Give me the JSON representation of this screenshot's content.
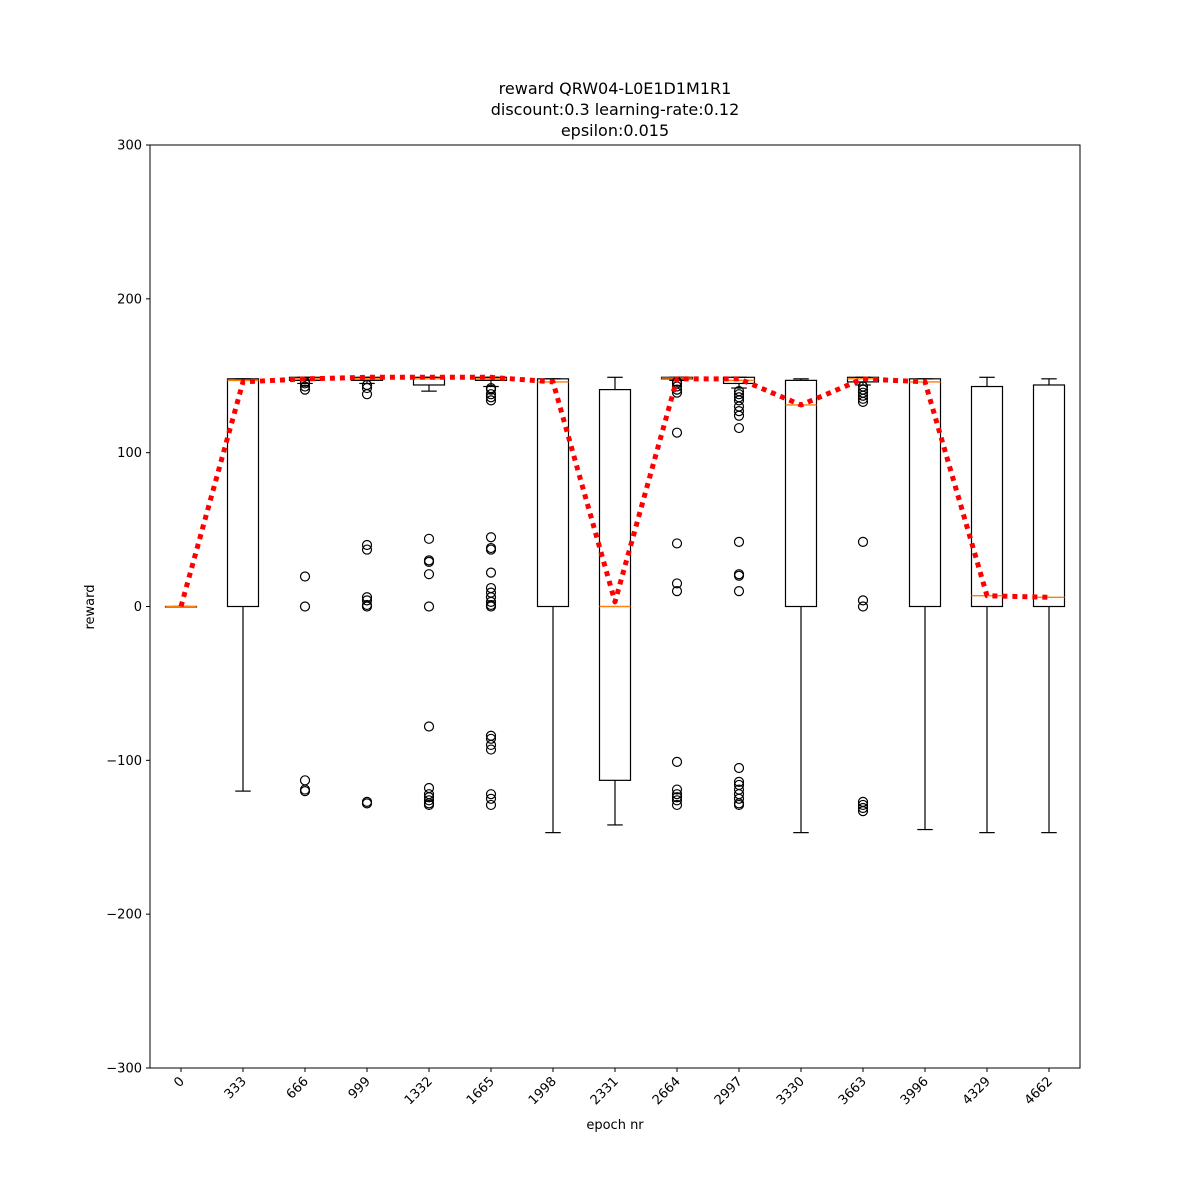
{
  "chart_data": {
    "type": "box",
    "title": [
      "reward QRW04-L0E1D1M1R1",
      "discount:0.3 learning-rate:0.12",
      "epsilon:0.015"
    ],
    "xlabel": "epoch nr",
    "ylabel": "reward",
    "ylim": [
      -300,
      300
    ],
    "yticks": [
      -300,
      -200,
      -100,
      0,
      100,
      200,
      300
    ],
    "ytick_labels": [
      "−300",
      "−200",
      "−100",
      "0",
      "100",
      "200",
      "300"
    ],
    "categories": [
      "0",
      "333",
      "666",
      "999",
      "1332",
      "1665",
      "1998",
      "2331",
      "2664",
      "2997",
      "3330",
      "3663",
      "3996",
      "4329",
      "4662"
    ],
    "boxes": [
      {
        "whislo": 0,
        "q1": 0,
        "med": 0,
        "q3": 0,
        "whishi": 0,
        "fliers": []
      },
      {
        "whislo": -120,
        "q1": 0,
        "med": 147,
        "q3": 148,
        "whishi": 148,
        "fliers": []
      },
      {
        "whislo": 145,
        "q1": 147,
        "med": 148,
        "q3": 149,
        "whishi": 149,
        "fliers": [
          146,
          145,
          143,
          141,
          19.5,
          0,
          -113,
          -119,
          -120
        ]
      },
      {
        "whislo": 145,
        "q1": 147,
        "med": 148,
        "q3": 149,
        "whishi": 149,
        "fliers": [
          144,
          142,
          138,
          40,
          37,
          6,
          4,
          1,
          0,
          -127,
          -128
        ]
      },
      {
        "whislo": 140,
        "q1": 144,
        "med": 148,
        "q3": 149,
        "whishi": 149,
        "fliers": [
          44,
          30,
          29,
          21,
          0,
          -78,
          -118,
          -122,
          -124,
          -126,
          -128,
          -129
        ]
      },
      {
        "whislo": 143,
        "q1": 147,
        "med": 148,
        "q3": 149,
        "whishi": 149,
        "fliers": [
          142,
          141,
          138,
          136,
          134,
          45,
          38,
          37,
          22,
          12,
          9,
          6,
          3,
          1,
          0,
          -84,
          -86,
          -90,
          -93,
          -122,
          -125,
          -129
        ]
      },
      {
        "whislo": -147,
        "q1": 0,
        "med": 146,
        "q3": 148,
        "whishi": 148,
        "fliers": []
      },
      {
        "whislo": -142,
        "q1": -113,
        "med": 0,
        "q3": 141,
        "whishi": 149,
        "fliers": []
      },
      {
        "whislo": 147,
        "q1": 148,
        "med": 148.5,
        "q3": 149,
        "whishi": 149,
        "fliers": [
          146,
          145,
          143,
          141,
          139,
          113,
          41,
          15,
          10,
          -101,
          -119,
          -122,
          -124,
          -126,
          -129
        ]
      },
      {
        "whislo": 142,
        "q1": 145,
        "med": 147,
        "q3": 149,
        "whishi": 149,
        "fliers": [
          140,
          138,
          136,
          134,
          130,
          127,
          124,
          116,
          42,
          21,
          20,
          10,
          -105,
          -114,
          -116,
          -119,
          -122,
          -125,
          -128,
          -129
        ]
      },
      {
        "whislo": -147,
        "q1": 0,
        "med": 131,
        "q3": 147,
        "whishi": 148,
        "fliers": []
      },
      {
        "whislo": 144,
        "q1": 146,
        "med": 148,
        "q3": 149,
        "whishi": 149,
        "fliers": [
          143,
          141,
          139,
          137,
          135,
          133,
          42,
          4,
          0,
          -127,
          -129,
          -131,
          -133
        ]
      },
      {
        "whislo": -145,
        "q1": 0,
        "med": 146,
        "q3": 148,
        "whishi": 148,
        "fliers": []
      },
      {
        "whislo": -147,
        "q1": 0,
        "med": 7,
        "q3": 143,
        "whishi": 149,
        "fliers": []
      },
      {
        "whislo": -147,
        "q1": 0,
        "med": 6,
        "q3": 144,
        "whishi": 148,
        "fliers": []
      }
    ],
    "mean_line": {
      "values": [
        0,
        146,
        148,
        149,
        149,
        149,
        146,
        3,
        148,
        148,
        131,
        148,
        146,
        7,
        6
      ],
      "color": "#ff0000",
      "style": "dotted"
    },
    "box_color": "#000000",
    "median_color": "#ff7f0e",
    "grid": false
  }
}
